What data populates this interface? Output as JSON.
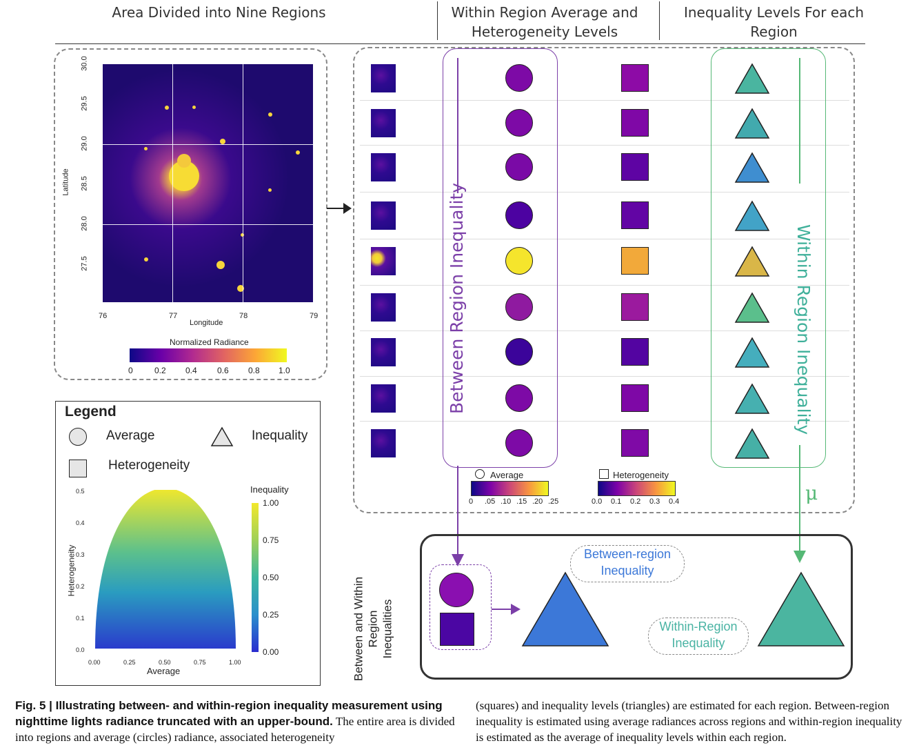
{
  "headers": {
    "col1": "Area Divided into Nine Regions",
    "col2": "Within Region Average and Heterogeneity Levels",
    "col3": "Inequality Levels For each Region"
  },
  "map": {
    "ylabel": "Latitude",
    "xlabel": "Longitude",
    "yticks": [
      "30.0",
      "29.5",
      "29.0",
      "28.5",
      "28.0",
      "27.5"
    ],
    "xticks": [
      "76",
      "77",
      "78",
      "79"
    ],
    "colorbar_title": "Normalized Radiance",
    "colorbar_ticks": [
      "0",
      "0.2",
      "0.4",
      "0.6",
      "0.8",
      "1.0"
    ]
  },
  "regions": {
    "between_label": "Between Region Inequality",
    "within_label": "Within Region Inequality",
    "mu": "μ",
    "average_colors": [
      "#7d0aa6",
      "#7d0aa6",
      "#7a0aa6",
      "#4c02a1",
      "#f5e52c",
      "#8f1aa0",
      "#3b049a",
      "#7d0aa6",
      "#7d0aa6"
    ],
    "heterogeneity_colors": [
      "#8d0ba6",
      "#7f08a6",
      "#5e04a3",
      "#6205a4",
      "#f2a93a",
      "#9b1a9e",
      "#5304a1",
      "#7e08a6",
      "#7f0aa6"
    ],
    "inequality_colors": [
      "#4ab5a0",
      "#42aaae",
      "#3f8ed0",
      "#42a3c7",
      "#d9b648",
      "#5bbf8c",
      "#45aebd",
      "#46b0b0",
      "#46b0a6"
    ],
    "avg_cbar_label": "Average",
    "avg_cbar_ticks": [
      "0",
      ".05",
      ".10",
      ".15",
      ".20",
      ".25"
    ],
    "het_cbar_label": "Heterogeneity",
    "het_cbar_ticks": [
      "0.0",
      "0.1",
      "0.2",
      "0.3",
      "0.4"
    ]
  },
  "legend": {
    "title": "Legend",
    "average": "Average",
    "inequality": "Inequality",
    "heterogeneity": "Heterogeneity",
    "xlabel": "Average",
    "ylabel": "Heterogeneity",
    "cbar_title": "Inequality",
    "xticks": [
      "0.00",
      "0.25",
      "0.50",
      "0.75",
      "1.00"
    ],
    "yticks": [
      "0.5",
      "0.4",
      "0.3",
      "0.2",
      "0.1",
      "0.0"
    ],
    "cbar_ticks": [
      "1.00",
      "0.75",
      "0.50",
      "0.25",
      "0.00"
    ]
  },
  "bottom": {
    "side_label_1": "Between and Within",
    "side_label_2": "Region",
    "side_label_3": "Inequalities",
    "between_pill_1": "Between-region",
    "between_pill_2": "Inequality",
    "within_pill_1": "Within-Region",
    "within_pill_2": "Inequality"
  },
  "caption": {
    "bold": "Fig. 5 | Illustrating between- and within-region inequality measurement using nighttime lights radiance truncated with an upper-bound.",
    "text_left": "The entire area is divided into regions and average (circles) radiance, associated heterogeneity",
    "text_right": "(squares) and inequality levels (triangles) are estimated for each region. Between-region inequality is estimated using average radiances across regions and within-region inequality is estimated as the average of inequality levels within each region."
  }
}
